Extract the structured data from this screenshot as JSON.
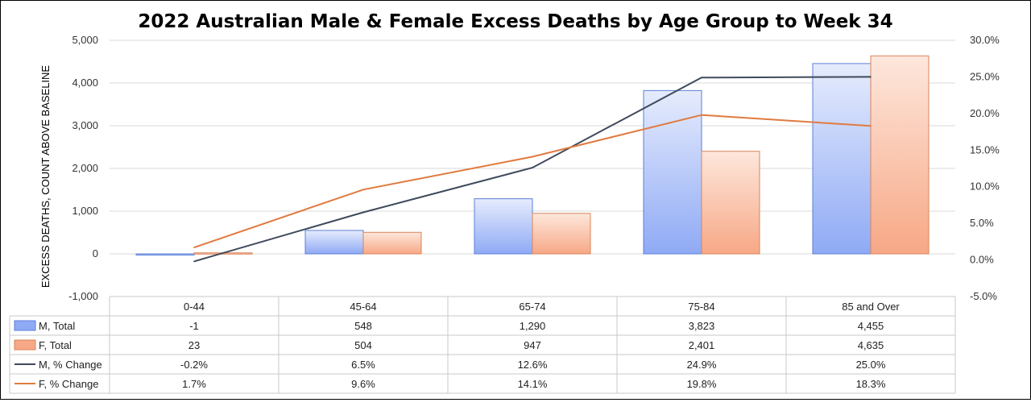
{
  "chart_data": {
    "type": "bar",
    "title": "2022 Australian  Male & Female Excess Deaths by Age Group to Week 34",
    "ylabel": "EXCESS DEATHS, COUNT ABOVE BASELINE",
    "y_left_ticks": [
      "-1,000",
      "0",
      "1,000",
      "2,000",
      "3,000",
      "4,000",
      "5,000"
    ],
    "y_right_ticks": [
      "-5.0%",
      "0.0%",
      "5.0%",
      "10.0%",
      "15.0%",
      "20.0%",
      "25.0%",
      "30.0%"
    ],
    "ylim_left": [
      -1000,
      5000
    ],
    "ylim_right": [
      -5,
      30
    ],
    "categories": [
      "0-44",
      "45-64",
      "65-74",
      "75-84",
      "85 and Over"
    ],
    "series": [
      {
        "name": "M, Total",
        "kind": "bar",
        "axis": "left",
        "values": [
          -1,
          548,
          1290,
          3823,
          4455
        ],
        "labels": [
          "-1",
          "548",
          "1,290",
          "3,823",
          "4,455"
        ],
        "color": "#8faaf5",
        "stroke": "#5b7fd6"
      },
      {
        "name": "F, Total",
        "kind": "bar",
        "axis": "left",
        "values": [
          23,
          504,
          947,
          2401,
          4635
        ],
        "labels": [
          "23",
          "504",
          "947",
          "2,401",
          "4,635"
        ],
        "color": "#f7a886",
        "stroke": "#d9845a"
      },
      {
        "name": "M, % Change",
        "kind": "line",
        "axis": "right",
        "values": [
          -0.2,
          6.5,
          12.6,
          24.9,
          25.0
        ],
        "labels": [
          "-0.2%",
          "6.5%",
          "12.6%",
          "24.9%",
          "25.0%"
        ],
        "color": "#3f4a5c"
      },
      {
        "name": "F, % Change",
        "kind": "line",
        "axis": "right",
        "values": [
          1.7,
          9.6,
          14.1,
          19.8,
          18.3
        ],
        "labels": [
          "1.7%",
          "9.6%",
          "14.1%",
          "19.8%",
          "18.3%"
        ],
        "color": "#e07a3f"
      }
    ],
    "grid": true,
    "legend": "data-table"
  }
}
